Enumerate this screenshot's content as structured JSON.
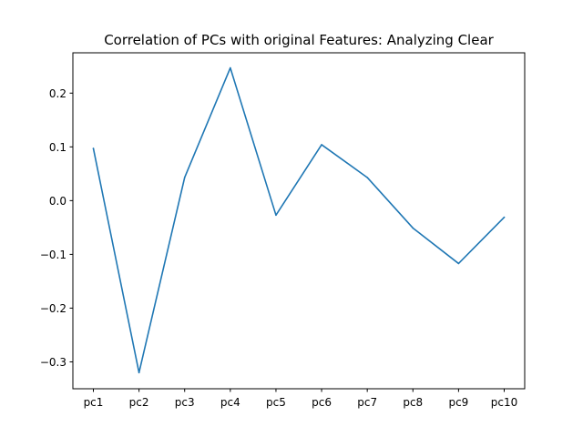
{
  "chart_data": {
    "type": "line",
    "title": "Correlation of PCs with original Features: Analyzing Clear",
    "xlabel": "",
    "ylabel": "",
    "categories": [
      "pc1",
      "pc2",
      "pc3",
      "pc4",
      "pc5",
      "pc6",
      "pc7",
      "pc8",
      "pc9",
      "pc10"
    ],
    "series": [
      {
        "values": [
          0.097,
          -0.32,
          0.043,
          0.247,
          -0.027,
          0.104,
          0.043,
          -0.051,
          -0.117,
          -0.031
        ]
      }
    ],
    "ylim": [
      -0.35,
      0.275
    ],
    "yticks": [
      -0.3,
      -0.2,
      -0.1,
      0.0,
      0.1,
      0.2
    ],
    "ytick_labels": [
      "−0.3",
      "−0.2",
      "−0.1",
      "0.0",
      "0.1",
      "0.2"
    ],
    "grid": false,
    "colors": {
      "line": "#1f77b4"
    }
  }
}
